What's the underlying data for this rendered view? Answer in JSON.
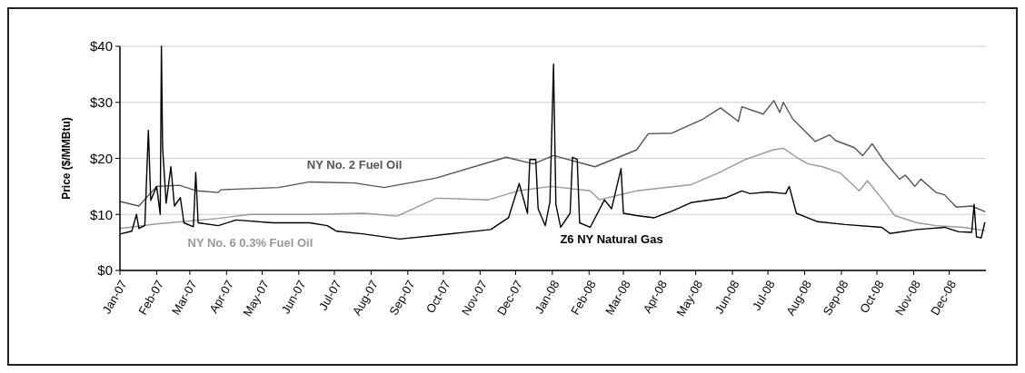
{
  "chart_data": {
    "type": "line",
    "ylabel": "Price ($/MMBtu)",
    "xlim": [
      "2007-01-01",
      "2009-01-01"
    ],
    "xticks": [
      {
        "value": "2007-01",
        "label": "Jan-07"
      },
      {
        "value": "2007-02",
        "label": "Feb-07"
      },
      {
        "value": "2007-03",
        "label": "Mar-07"
      },
      {
        "value": "2007-04",
        "label": "Apr-07"
      },
      {
        "value": "2007-05",
        "label": "May-07"
      },
      {
        "value": "2007-06",
        "label": "Jun-07"
      },
      {
        "value": "2007-07",
        "label": "Jul-07"
      },
      {
        "value": "2007-08",
        "label": "Aug-07"
      },
      {
        "value": "2007-09",
        "label": "Sep-07"
      },
      {
        "value": "2007-10",
        "label": "Oct-07"
      },
      {
        "value": "2007-11",
        "label": "Nov-07"
      },
      {
        "value": "2007-12",
        "label": "Dec-07"
      },
      {
        "value": "2008-01",
        "label": "Jan-08"
      },
      {
        "value": "2008-02",
        "label": "Feb-08"
      },
      {
        "value": "2008-03",
        "label": "Mar-08"
      },
      {
        "value": "2008-04",
        "label": "Apr-08"
      },
      {
        "value": "2008-05",
        "label": "May-08"
      },
      {
        "value": "2008-06",
        "label": "Jun-08"
      },
      {
        "value": "2008-07",
        "label": "Jul-08"
      },
      {
        "value": "2008-08",
        "label": "Aug-08"
      },
      {
        "value": "2008-09",
        "label": "Sep-08"
      },
      {
        "value": "2008-10",
        "label": "Oct-08"
      },
      {
        "value": "2008-11",
        "label": "Nov-08"
      },
      {
        "value": "2008-12",
        "label": "Dec-08"
      }
    ],
    "ylim": [
      0,
      40
    ],
    "yticks": [
      {
        "value": 0,
        "label": "$0"
      },
      {
        "value": 10,
        "label": "$10"
      },
      {
        "value": 20,
        "label": "$20"
      },
      {
        "value": 30,
        "label": "$30"
      },
      {
        "value": 40,
        "label": "$40"
      }
    ],
    "grid": "y",
    "legend": false,
    "marker": "none",
    "line_style": "solid",
    "series": [
      {
        "name": "NY No. 2 Fuel Oil",
        "color": "#555555",
        "x": [
          "2007-01-01",
          "2007-01-17",
          "2007-02-01",
          "2007-02-20",
          "2007-03-07",
          "2007-03-25",
          "2007-03-27",
          "2007-05-15",
          "2007-06-10",
          "2007-07-18",
          "2007-08-12",
          "2007-09-25",
          "2007-11-23",
          "2007-12-16",
          "2008-01-02",
          "2008-02-06",
          "2008-03-12",
          "2008-03-22",
          "2008-04-11",
          "2008-05-07",
          "2008-05-22",
          "2008-06-06",
          "2008-06-09",
          "2008-06-27",
          "2008-07-06",
          "2008-07-11",
          "2008-07-14",
          "2008-07-22",
          "2008-08-10",
          "2008-08-22",
          "2008-08-27",
          "2008-09-12",
          "2008-09-19",
          "2008-09-27",
          "2008-10-07",
          "2008-10-20",
          "2008-10-25",
          "2008-11-02",
          "2008-11-07",
          "2008-11-20",
          "2008-11-27",
          "2008-12-07",
          "2008-12-20",
          "2008-12-31"
        ],
        "values": [
          12.3,
          11.5,
          15,
          15.2,
          14.2,
          13.9,
          14.4,
          14.8,
          15.8,
          15.6,
          14.8,
          16.5,
          20.2,
          19,
          20.5,
          18.5,
          21.5,
          24.4,
          24.5,
          27,
          29,
          26.6,
          29.2,
          27.9,
          30.3,
          28.2,
          30,
          27,
          23,
          24.2,
          23.2,
          21.9,
          20.5,
          22.6,
          19.5,
          16.3,
          17,
          15,
          16.3,
          13.9,
          13.5,
          11.3,
          11.5,
          10.5
        ]
      },
      {
        "name": "NY No. 6 0.3% Fuel Oil",
        "color": "#999999",
        "x": [
          "2007-01-01",
          "2007-02-01",
          "2007-03-25",
          "2007-04-21",
          "2007-06-10",
          "2007-07-26",
          "2007-08-23",
          "2007-09-25",
          "2007-11-08",
          "2007-12-03",
          "2007-12-31",
          "2008-02-02",
          "2008-02-10",
          "2008-02-25",
          "2008-03-12",
          "2008-04-27",
          "2008-05-20",
          "2008-06-12",
          "2008-07-05",
          "2008-07-14",
          "2008-07-28",
          "2008-08-04",
          "2008-08-16",
          "2008-08-31",
          "2008-09-16",
          "2008-09-23",
          "2008-10-09",
          "2008-10-16",
          "2008-11-04",
          "2008-11-20",
          "2008-12-13",
          "2008-12-31"
        ],
        "values": [
          7.5,
          8.3,
          9.3,
          10,
          10,
          10.2,
          9.7,
          12.9,
          12.6,
          14.2,
          15,
          14.2,
          12.6,
          13.4,
          14.2,
          15.3,
          17.4,
          19.8,
          21.5,
          21.8,
          19.8,
          19,
          18.5,
          17.4,
          14.2,
          16,
          11.8,
          9.8,
          8.5,
          8,
          7.7,
          7.1
        ]
      },
      {
        "name": "Z6 NY Natural Gas",
        "color": "#000000",
        "x": [
          "2007-01-01",
          "2007-01-11",
          "2007-01-15",
          "2007-01-17",
          "2007-01-22",
          "2007-01-25",
          "2007-01-27",
          "2007-02-01",
          "2007-02-04",
          "2007-02-05",
          "2007-02-06",
          "2007-02-09",
          "2007-02-13",
          "2007-02-16",
          "2007-02-21",
          "2007-02-24",
          "2007-03-04",
          "2007-03-06",
          "2007-03-08",
          "2007-03-25",
          "2007-04-09",
          "2007-05-10",
          "2007-06-10",
          "2007-06-25",
          "2007-07-03",
          "2007-07-26",
          "2007-08-25",
          "2007-10-10",
          "2007-11-10",
          "2007-11-25",
          "2007-12-04",
          "2007-12-11",
          "2007-12-13",
          "2007-12-18",
          "2007-12-20",
          "2007-12-26",
          "2007-12-30",
          "2008-01-02",
          "2008-01-04",
          "2008-01-08",
          "2008-01-16",
          "2008-01-18",
          "2008-01-22",
          "2008-01-24",
          "2008-02-02",
          "2008-02-14",
          "2008-02-20",
          "2008-02-28",
          "2008-03-01",
          "2008-03-12",
          "2008-03-27",
          "2008-04-11",
          "2008-04-27",
          "2008-05-27",
          "2008-06-09",
          "2008-06-16",
          "2008-07-01",
          "2008-07-16",
          "2008-07-19",
          "2008-07-25",
          "2008-08-12",
          "2008-09-04",
          "2008-10-05",
          "2008-10-12",
          "2008-11-04",
          "2008-11-27",
          "2008-12-09",
          "2008-12-20",
          "2008-12-22",
          "2008-12-24",
          "2008-12-28",
          "2008-12-31"
        ],
        "values": [
          6.5,
          7,
          10,
          7.5,
          8,
          25,
          12.5,
          15,
          10,
          40,
          22,
          12,
          18.5,
          11.5,
          13,
          8.5,
          7.8,
          17.5,
          8.5,
          8,
          9,
          8.5,
          8.5,
          8,
          7,
          6.5,
          5.6,
          6.6,
          7.3,
          9.4,
          15.5,
          10.2,
          19.8,
          19.8,
          11,
          8,
          12.3,
          36.8,
          11.8,
          7.7,
          10.2,
          20.2,
          19.8,
          8.5,
          7.7,
          12.6,
          11,
          18.2,
          10.2,
          9.8,
          9.4,
          10.6,
          12.1,
          13,
          14.2,
          13.7,
          14,
          13.7,
          15,
          10.2,
          8.7,
          8.2,
          7.7,
          6.6,
          7.3,
          7.7,
          6.9,
          6.8,
          11.8,
          6,
          5.8,
          8.5
        ]
      }
    ]
  }
}
